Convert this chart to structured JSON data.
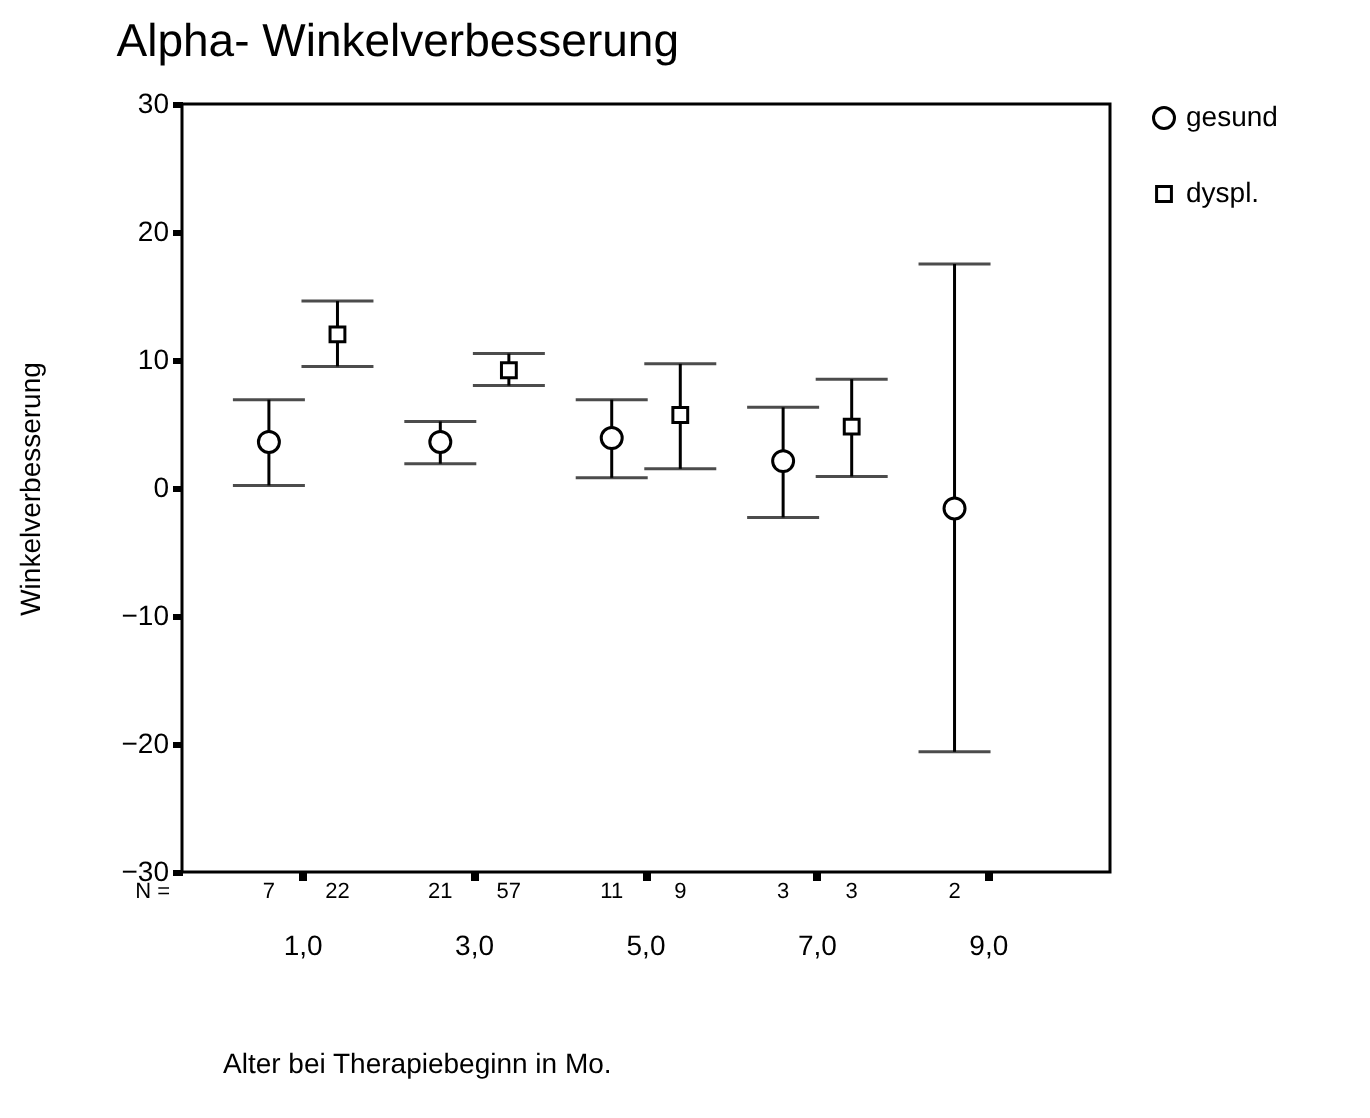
{
  "chart_data": {
    "type": "scatter",
    "title": "Alpha- Winkelverbesserung",
    "xlabel": "Alter bei Therapiebeginn in Mo.",
    "ylabel": "Winkelverbesserung",
    "categories": [
      "1,0",
      "3,0",
      "5,0",
      "7,0",
      "9,0"
    ],
    "series": [
      {
        "name": "gesund",
        "color": "#000000",
        "marker": "circle",
        "values": [
          3.6,
          3.6,
          3.9,
          2.1,
          -1.6
        ],
        "errors": [
          [
            0.2,
            6.9
          ],
          [
            1.9,
            5.2
          ],
          [
            0.8,
            6.9
          ],
          [
            -2.3,
            6.3
          ],
          [
            -20.6,
            17.5
          ]
        ]
      },
      {
        "name": "dyspl.",
        "color": "#000000",
        "marker": "square",
        "values": [
          12.0,
          9.2,
          5.7,
          4.8,
          null
        ],
        "errors": [
          [
            9.5,
            14.6
          ],
          [
            8.0,
            10.5
          ],
          [
            1.5,
            9.7
          ],
          [
            0.9,
            8.5
          ],
          null
        ]
      }
    ],
    "ylim": [
      -30,
      30
    ],
    "yticks": [
      -30,
      -20,
      -10,
      0,
      10,
      20,
      30
    ],
    "grid": false,
    "legend": "right",
    "annotations": [
      "N =",
      "7",
      "22",
      "21",
      "57",
      "11",
      "9",
      "3",
      "3",
      "2"
    ]
  }
}
